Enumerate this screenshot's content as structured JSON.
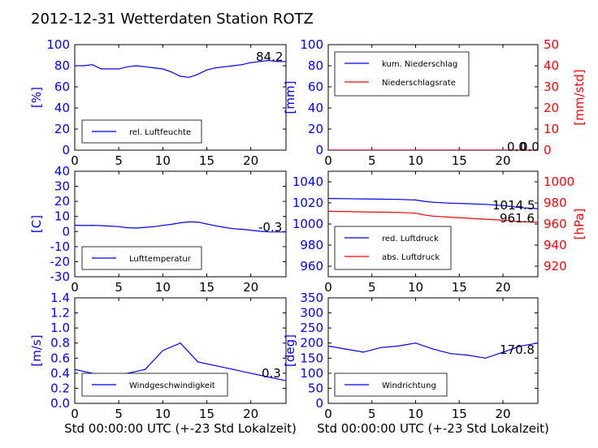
{
  "title": "2012-12-31 Wetterdaten Station ROTZ",
  "xlabel": "Std 00:00:00 UTC (+-23 Std Lokalzeit)",
  "chart_data": [
    {
      "type": "line",
      "id": "humidity",
      "xlim": [
        0,
        24
      ],
      "xticks": [
        0,
        5,
        10,
        15,
        20
      ],
      "ylim": [
        0,
        100
      ],
      "yticks": [
        0,
        20,
        40,
        60,
        80,
        100
      ],
      "ylabel": "[%]",
      "legend": "bottom-left",
      "series": [
        {
          "name": "rel. Luftfeuchte",
          "color": "#0000ff",
          "x": [
            0,
            1,
            2,
            3,
            4,
            5,
            6,
            7,
            8,
            9,
            10,
            11,
            12,
            13,
            14,
            15,
            16,
            17,
            18,
            19,
            20,
            21,
            22,
            23,
            24
          ],
          "y": [
            80,
            80,
            81,
            77,
            77,
            77,
            79,
            80,
            79,
            78,
            77,
            74,
            70,
            69,
            72,
            76,
            78,
            79,
            80,
            81,
            83,
            84,
            85,
            84,
            84
          ]
        }
      ],
      "annotation": "84.2"
    },
    {
      "type": "line",
      "id": "precipitation",
      "xlim": [
        0,
        24
      ],
      "xticks": [
        0,
        5,
        10,
        15,
        20
      ],
      "ylim": [
        0,
        100
      ],
      "yticks": [
        0,
        20,
        40,
        60,
        80,
        100
      ],
      "ylabel": "[mm]",
      "ylim_right": [
        0,
        50
      ],
      "yticks_right": [
        0,
        10,
        20,
        30,
        40,
        50
      ],
      "ylabel_right": "[mm/std]",
      "legend": "top-left",
      "series": [
        {
          "name": "kum. Niederschlag",
          "color": "#0000ff",
          "axis": "left",
          "x": [
            0,
            24
          ],
          "y": [
            0,
            0
          ]
        },
        {
          "name": "Niederschlagsrate",
          "color": "#ff0000",
          "axis": "right",
          "x": [
            0,
            24
          ],
          "y": [
            0,
            0
          ]
        }
      ],
      "annotations": [
        "0.0",
        "0.0"
      ]
    },
    {
      "type": "line",
      "id": "temperature",
      "xlim": [
        0,
        24
      ],
      "xticks": [
        0,
        5,
        10,
        15,
        20
      ],
      "ylim": [
        -30,
        40
      ],
      "yticks": [
        -30,
        -20,
        -10,
        0,
        10,
        20,
        30,
        40
      ],
      "ylabel": "[C]",
      "legend": "bottom-left",
      "series": [
        {
          "name": "Lufttemperatur",
          "color": "#0000ff",
          "x": [
            0,
            1,
            2,
            3,
            4,
            5,
            6,
            7,
            8,
            9,
            10,
            11,
            12,
            13,
            14,
            15,
            16,
            17,
            18,
            19,
            20,
            21,
            22,
            23,
            24
          ],
          "y": [
            4.2,
            4.0,
            4.1,
            3.9,
            3.6,
            3.3,
            2.5,
            2.3,
            2.8,
            3.2,
            4.1,
            4.8,
            5.8,
            6.4,
            6.3,
            5.0,
            3.8,
            2.8,
            1.9,
            1.5,
            0.9,
            0.2,
            -0.2,
            -0.3,
            -0.3
          ]
        }
      ],
      "annotation": "-0.3"
    },
    {
      "type": "line",
      "id": "pressure",
      "xlim": [
        0,
        24
      ],
      "xticks": [
        0,
        5,
        10,
        15,
        20
      ],
      "ylim": [
        950,
        1050
      ],
      "yticks": [
        960,
        980,
        1000,
        1020,
        1040
      ],
      "ylim_right": [
        910,
        1010
      ],
      "yticks_right": [
        920,
        940,
        960,
        980,
        1000
      ],
      "ylabel_right": "[hPa]",
      "legend": "bottom-left",
      "series": [
        {
          "name": "red. Luftdruck",
          "color": "#0000ff",
          "axis": "left",
          "x": [
            0,
            2,
            4,
            6,
            8,
            10,
            11,
            12,
            14,
            16,
            18,
            20,
            22,
            24
          ],
          "y": [
            1024.2,
            1024.0,
            1023.8,
            1023.5,
            1023.3,
            1022.8,
            1021.5,
            1020.6,
            1019.8,
            1019.2,
            1018.6,
            1017.5,
            1015.5,
            1014.5
          ]
        },
        {
          "name": "abs. Luftdruck",
          "color": "#ff0000",
          "axis": "right",
          "x": [
            0,
            2,
            4,
            6,
            8,
            10,
            11,
            12,
            14,
            16,
            18,
            20,
            22,
            24
          ],
          "y": [
            972,
            971.8,
            971.5,
            971.2,
            971.0,
            970.2,
            968.5,
            967.5,
            966.5,
            965.5,
            964.5,
            963.5,
            962.2,
            961.6
          ]
        }
      ],
      "annotations": [
        "1014.5",
        "961.6"
      ]
    },
    {
      "type": "line",
      "id": "windspeed",
      "xlim": [
        0,
        24
      ],
      "xticks": [
        0,
        5,
        10,
        15,
        20
      ],
      "ylim": [
        0,
        1.4
      ],
      "yticks": [
        0.0,
        0.2,
        0.4,
        0.6,
        0.8,
        1.0,
        1.2,
        1.4
      ],
      "ylabel": "[m/s]",
      "legend": "bottom-left",
      "series": [
        {
          "name": "Windgeschwindigkeit",
          "color": "#0000ff",
          "x": [
            0,
            2,
            4,
            6,
            8,
            10,
            12,
            14,
            16,
            18,
            20,
            22,
            24
          ],
          "y": [
            0.45,
            0.4,
            0.35,
            0.4,
            0.45,
            0.7,
            0.8,
            0.55,
            0.5,
            0.45,
            0.4,
            0.35,
            0.3
          ]
        }
      ],
      "annotation": "0.3"
    },
    {
      "type": "line",
      "id": "winddir",
      "xlim": [
        0,
        24
      ],
      "xticks": [
        0,
        5,
        10,
        15,
        20
      ],
      "ylim": [
        0,
        350
      ],
      "yticks": [
        0,
        50,
        100,
        150,
        200,
        250,
        300,
        350
      ],
      "ylabel": "[deg]",
      "legend": "bottom-left",
      "series": [
        {
          "name": "Windrichtung",
          "color": "#0000ff",
          "x": [
            0,
            2,
            4,
            6,
            8,
            10,
            12,
            14,
            16,
            18,
            20,
            22,
            24
          ],
          "y": [
            190,
            180,
            170,
            185,
            190,
            200,
            180,
            165,
            160,
            150,
            170,
            190,
            200
          ]
        }
      ],
      "annotation": "170.8"
    }
  ]
}
